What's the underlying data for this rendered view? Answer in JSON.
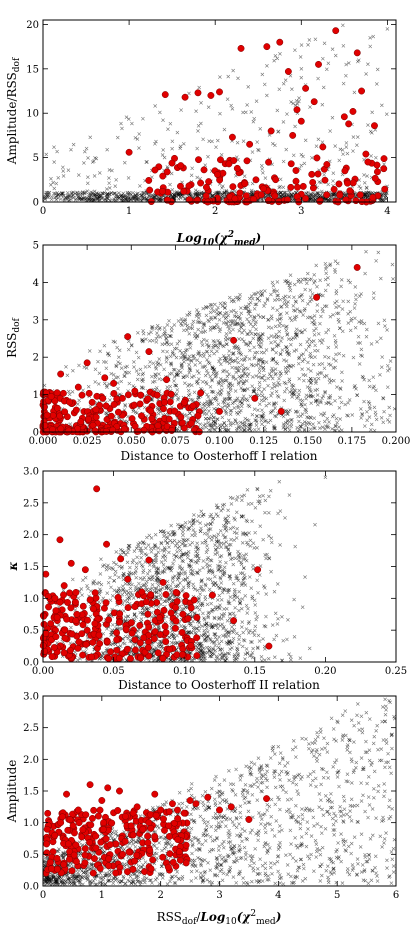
{
  "chart_data": [
    {
      "type": "scatter",
      "xlabel": "Log10(χ²med)",
      "ylabel": "Amplitude/RSSdof",
      "xlim": [
        0,
        4.1
      ],
      "ylim": [
        0,
        20.5
      ],
      "xticks": [
        "0",
        "1",
        "2",
        "3",
        "4"
      ],
      "yticks": [
        "0",
        "5",
        "10",
        "15",
        "20"
      ],
      "series": [
        {
          "marker": "cross",
          "color": "#000000",
          "count": 1500,
          "x": [
            0.1,
            0.35,
            0.6,
            0.85,
            1.2,
            1.5,
            1.8,
            2.2,
            2.6,
            3.0,
            3.4,
            3.8,
            4.0
          ],
          "y": [
            0.3,
            0.8,
            1.2,
            2.5,
            4.5,
            6.0,
            8.0,
            10.5,
            12.0,
            14.0,
            16.5,
            18.5,
            19.5
          ]
        },
        {
          "marker": "circle",
          "color": "#e00000",
          "x": [
            1.42,
            1.65,
            1.8,
            1.95,
            2.05,
            2.3,
            2.6,
            2.75,
            2.85,
            2.95,
            3.05,
            3.15,
            3.2,
            3.4,
            3.5,
            3.6,
            3.65,
            3.7,
            3.85,
            1.0,
            1.3,
            1.6,
            2.2,
            2.4,
            2.65,
            2.9,
            3.0,
            3.25,
            3.55,
            3.75
          ],
          "y": [
            12.1,
            11.8,
            12.3,
            12.0,
            12.4,
            17.3,
            17.5,
            18.0,
            14.7,
            10.4,
            12.8,
            11.3,
            15.5,
            19.3,
            9.6,
            10.2,
            16.8,
            12.5,
            8.6,
            5.6,
            3.6,
            4.1,
            7.3,
            6.5,
            8.0,
            7.5,
            9.1,
            6.2,
            8.8,
            5.4
          ]
        }
      ]
    },
    {
      "type": "scatter",
      "xlabel": "Distance to Oosterhoff I relation",
      "ylabel": "RSSdof",
      "xlim": [
        0,
        0.2
      ],
      "ylim": [
        0,
        5
      ],
      "xticks": [
        "0.000",
        "0.025",
        "0.050",
        "0.075",
        "0.100",
        "0.125",
        "0.150",
        "0.175",
        "0.200"
      ],
      "yticks": [
        "0",
        "1",
        "2",
        "3",
        "4",
        "5"
      ],
      "series": [
        {
          "marker": "cross",
          "color": "#000000",
          "count": 1800,
          "x": [
            0.01,
            0.04,
            0.07,
            0.1,
            0.13,
            0.16,
            0.19
          ],
          "y": [
            0.3,
            1.0,
            2.0,
            3.0,
            4.0,
            4.5,
            4.8
          ]
        },
        {
          "marker": "circle",
          "color": "#e00000",
          "x": [
            0.178,
            0.155,
            0.048,
            0.06,
            0.108,
            0.04,
            0.025,
            0.035,
            0.01,
            0.008,
            0.015,
            0.02,
            0.03,
            0.045,
            0.055,
            0.07,
            0.085,
            0.1,
            0.12,
            0.135
          ],
          "y": [
            4.4,
            3.6,
            2.55,
            2.15,
            2.45,
            1.3,
            1.85,
            1.45,
            1.55,
            1.05,
            0.8,
            1.2,
            0.6,
            0.9,
            0.75,
            1.4,
            0.7,
            0.55,
            0.9,
            0.55
          ]
        }
      ]
    },
    {
      "type": "scatter",
      "xlabel": "Distance to Oosterhoff II relation",
      "ylabel": "κ",
      "xlim": [
        0,
        0.25
      ],
      "ylim": [
        0,
        3.0
      ],
      "xticks": [
        "0.00",
        "0.05",
        "0.10",
        "0.15",
        "0.20",
        "0.25"
      ],
      "yticks": [
        "0.0",
        "0.5",
        "1.0",
        "1.5",
        "2.0",
        "2.5",
        "3.0"
      ],
      "series": [
        {
          "marker": "cross",
          "color": "#000000",
          "count": 1800,
          "x": [
            0.01,
            0.04,
            0.08,
            0.12,
            0.16,
            0.2,
            0.24
          ],
          "y": [
            0.3,
            0.9,
            1.6,
            2.2,
            2.6,
            2.9,
            3.0
          ]
        },
        {
          "marker": "circle",
          "color": "#e00000",
          "x": [
            0.038,
            0.012,
            0.02,
            0.045,
            0.055,
            0.075,
            0.002,
            0.015,
            0.03,
            0.06,
            0.07,
            0.085,
            0.095,
            0.105,
            0.12,
            0.135,
            0.152,
            0.16,
            0.01
          ],
          "y": [
            2.72,
            1.92,
            1.55,
            1.85,
            1.62,
            1.6,
            1.38,
            1.2,
            1.45,
            1.3,
            1.1,
            1.25,
            0.95,
            0.85,
            1.05,
            0.65,
            1.45,
            0.25,
            0.7
          ]
        }
      ]
    },
    {
      "type": "scatter",
      "xlabel": "RSSdof/Log10(χ²med)",
      "ylabel": "Amplitude",
      "xlim": [
        0,
        6
      ],
      "ylim": [
        0,
        3.0
      ],
      "xticks": [
        "0",
        "1",
        "2",
        "3",
        "4",
        "5",
        "6"
      ],
      "yticks": [
        "0.0",
        "0.5",
        "1.0",
        "1.5",
        "2.0",
        "2.5",
        "3.0"
      ],
      "series": [
        {
          "marker": "cross",
          "color": "#000000",
          "count": 1800,
          "x": [
            0.2,
            0.8,
            1.5,
            2.2,
            3.0,
            4.0,
            5.0,
            5.9
          ],
          "y": [
            0.3,
            0.5,
            0.8,
            1.2,
            1.6,
            2.2,
            2.6,
            2.9
          ]
        },
        {
          "marker": "circle",
          "color": "#e00000",
          "x": [
            0.4,
            0.8,
            1.1,
            1.3,
            1.6,
            1.9,
            2.2,
            2.5,
            2.8,
            3.2,
            3.5,
            3.8,
            0.2,
            0.6,
            1.0,
            1.4,
            1.8,
            2.0,
            2.4,
            2.6,
            3.0,
            0.3,
            0.9,
            1.5
          ],
          "y": [
            1.45,
            1.6,
            1.55,
            1.5,
            1.25,
            1.45,
            1.3,
            1.35,
            1.4,
            1.25,
            1.05,
            1.38,
            0.8,
            1.2,
            1.35,
            1.1,
            1.0,
            1.2,
            1.15,
            1.3,
            1.2,
            1.0,
            0.6,
            0.95
          ]
        }
      ]
    }
  ]
}
